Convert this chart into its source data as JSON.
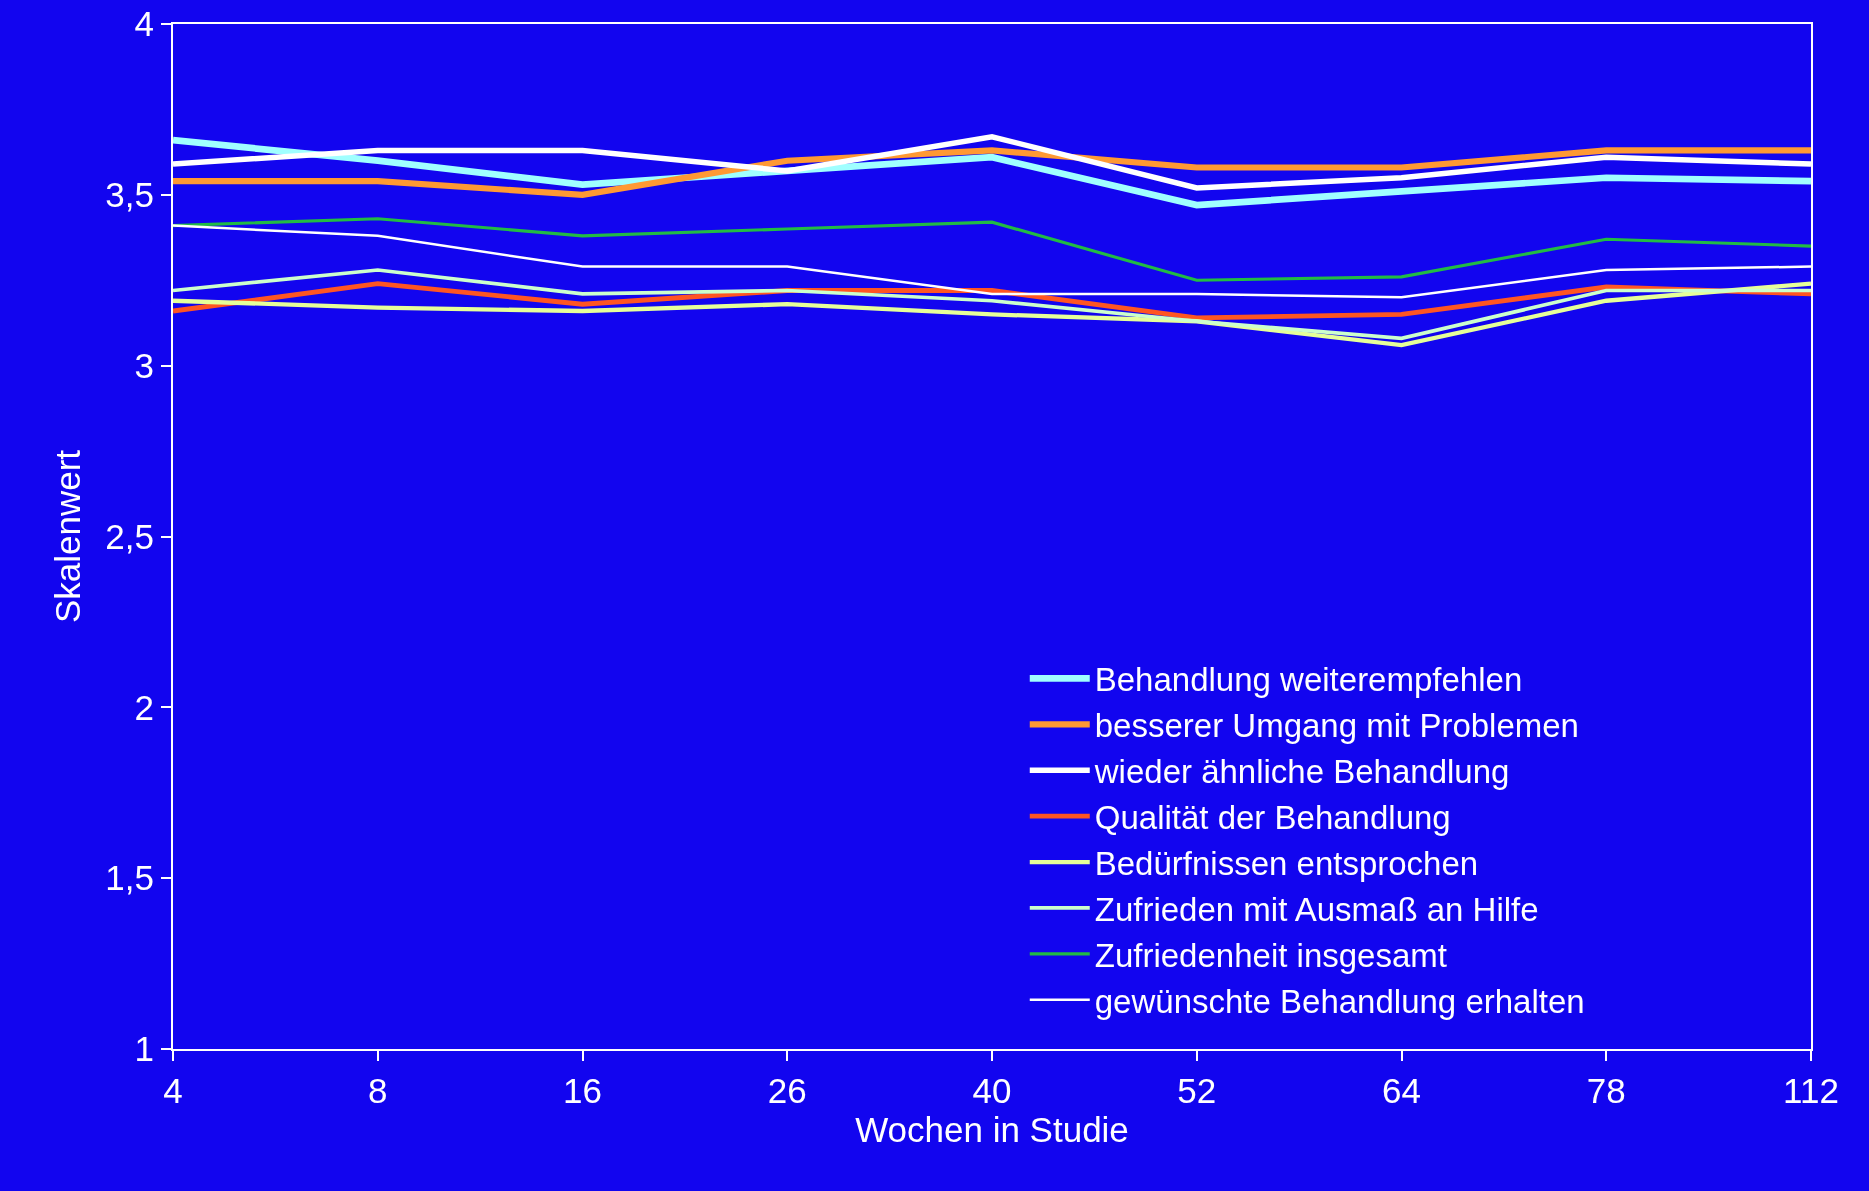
{
  "chart_data": {
    "type": "line",
    "xlabel": "Wochen in Studie",
    "ylabel": "Skalenwert",
    "categories": [
      "4",
      "8",
      "16",
      "26",
      "40",
      "52",
      "64",
      "78",
      "112"
    ],
    "ylim": [
      1,
      4
    ],
    "yticks": [
      1,
      {
        "value": 1.5,
        "label": "1,5"
      },
      2,
      {
        "value": 2.5,
        "label": "2,5"
      },
      3,
      {
        "value": 3.5,
        "label": "3,5"
      },
      4
    ],
    "grid": false,
    "legend": "bottom right",
    "marker": "none",
    "line_style": "solid",
    "series": [
      {
        "name": "Behandlung weiterempfehlen",
        "color": "#a0ffff",
        "values": [
          3.66,
          3.6,
          3.53,
          3.57,
          3.61,
          3.47,
          3.51,
          3.55,
          3.54
        ]
      },
      {
        "name": "besserer Umgang mit Problemen",
        "color": "#ff9933",
        "values": [
          3.54,
          3.54,
          3.5,
          3.6,
          3.63,
          3.58,
          3.58,
          3.63,
          3.63
        ]
      },
      {
        "name": "wieder ähnliche Behandlung",
        "color": "#ffffff",
        "values": [
          3.59,
          3.63,
          3.63,
          3.57,
          3.67,
          3.52,
          3.55,
          3.61,
          3.59
        ]
      },
      {
        "name": "Qualität der Behandlung",
        "color": "#ff5522",
        "values": [
          3.16,
          3.24,
          3.18,
          3.22,
          3.22,
          3.14,
          3.15,
          3.23,
          3.21
        ]
      },
      {
        "name": "Bedürfnissen entsprochen",
        "color": "#e6ff99",
        "values": [
          3.19,
          3.17,
          3.16,
          3.18,
          3.15,
          3.13,
          3.06,
          3.19,
          3.24
        ]
      },
      {
        "name": "Zufrieden mit Ausmaß an Hilfe",
        "color": "#ccffcc",
        "values": [
          3.22,
          3.28,
          3.21,
          3.22,
          3.19,
          3.13,
          3.08,
          3.22,
          3.22
        ]
      },
      {
        "name": "Zufriedenheit insgesamt",
        "color": "#22bb44",
        "values": [
          3.41,
          3.43,
          3.38,
          3.4,
          3.42,
          3.25,
          3.26,
          3.37,
          3.35
        ]
      },
      {
        "name": "gewünschte Behandlung erhalten",
        "color": "#ffffff",
        "values": [
          3.41,
          3.38,
          3.29,
          3.29,
          3.21,
          3.21,
          3.2,
          3.28,
          3.29
        ]
      }
    ]
  }
}
